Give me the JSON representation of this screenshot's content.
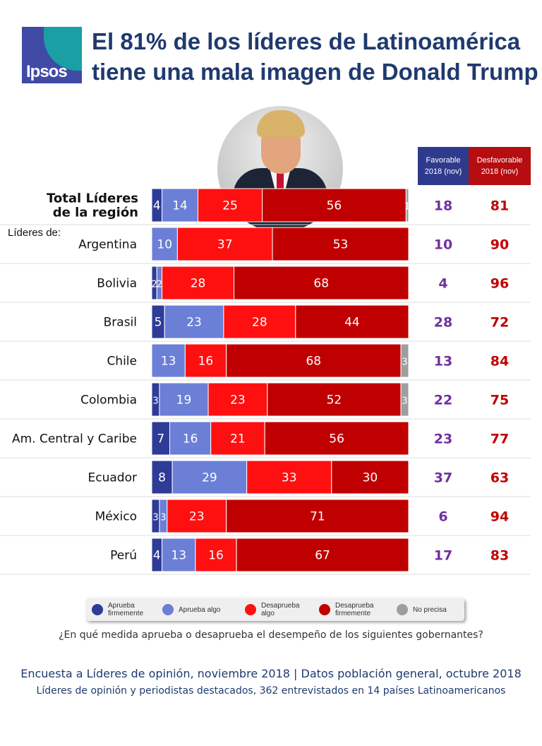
{
  "logo": {
    "text": "Ipsos"
  },
  "title": {
    "line1": "El 81% de los líderes de Latinoamérica",
    "line2": "tiene una mala imagen de Donald Trump"
  },
  "photo": {
    "subject": "Donald Trump"
  },
  "columns": {
    "favorable": [
      "Favorable",
      "2018 (nov)"
    ],
    "desfavorable": [
      "Desfavorable",
      "2018 (nov)"
    ]
  },
  "section_label": "Líderes de:",
  "colors": {
    "aprueba_firmemente": "#2e3b97",
    "aprueba_algo": "#6b7fd6",
    "desaprueba_algo": "#ff1010",
    "desaprueba_firmemente": "#c00000",
    "no_precisa": "#9e9e9e",
    "favorable_text": "#7030a0",
    "desfavorable_text": "#c00000"
  },
  "legend": [
    {
      "key": "aprueba_firmemente",
      "label": [
        "Aprueba",
        "firmemente"
      ]
    },
    {
      "key": "aprueba_algo",
      "label": [
        "Aprueba algo"
      ]
    },
    {
      "key": "desaprueba_algo",
      "label": [
        "Desaprueba",
        "algo"
      ]
    },
    {
      "key": "desaprueba_firmemente",
      "label": [
        "Desaprueba",
        "firmemente"
      ]
    },
    {
      "key": "no_precisa",
      "label": [
        "No precisa"
      ]
    }
  ],
  "chart_data": {
    "type": "bar",
    "orientation": "horizontal",
    "stacked": true,
    "xlim": [
      0,
      100
    ],
    "categories": [
      [
        "Total Líderes",
        "de la región"
      ],
      [
        "Argentina"
      ],
      [
        "Bolivia"
      ],
      [
        "Brasil"
      ],
      [
        "Chile"
      ],
      [
        "Colombia"
      ],
      [
        "Am. Central y Caribe"
      ],
      [
        "Ecuador"
      ],
      [
        "México"
      ],
      [
        "Perú"
      ]
    ],
    "bold_categories": [
      0
    ],
    "series": [
      {
        "name": "Aprueba firmemente",
        "key": "aprueba_firmemente",
        "values": [
          4,
          0,
          2,
          5,
          0,
          3,
          7,
          8,
          3,
          4
        ]
      },
      {
        "name": "Aprueba algo",
        "key": "aprueba_algo",
        "values": [
          14,
          10,
          2,
          23,
          13,
          19,
          16,
          29,
          3,
          13
        ]
      },
      {
        "name": "Desaprueba algo",
        "key": "desaprueba_algo",
        "values": [
          25,
          37,
          28,
          28,
          16,
          23,
          21,
          33,
          23,
          16
        ]
      },
      {
        "name": "Desaprueba firmemente",
        "key": "desaprueba_firmemente",
        "values": [
          56,
          53,
          68,
          44,
          68,
          52,
          56,
          30,
          71,
          67
        ]
      },
      {
        "name": "No precisa",
        "key": "no_precisa",
        "values": [
          1,
          0,
          0,
          0,
          3,
          3,
          0,
          0,
          0,
          0
        ]
      }
    ],
    "favorable": [
      18,
      10,
      4,
      28,
      13,
      22,
      23,
      37,
      6,
      17
    ],
    "desfavorable": [
      81,
      90,
      96,
      72,
      84,
      75,
      77,
      63,
      94,
      83
    ]
  },
  "question": "¿En qué medida aprueba o desaprueba el desempeño de los siguientes gobernantes?",
  "footer": {
    "line1": "Encuesta a Líderes de opinión, noviembre 2018 | Datos población general, octubre 2018",
    "line2": "Líderes de opinión y periodistas destacados, 362 entrevistados en 14 países Latinoamericanos"
  }
}
